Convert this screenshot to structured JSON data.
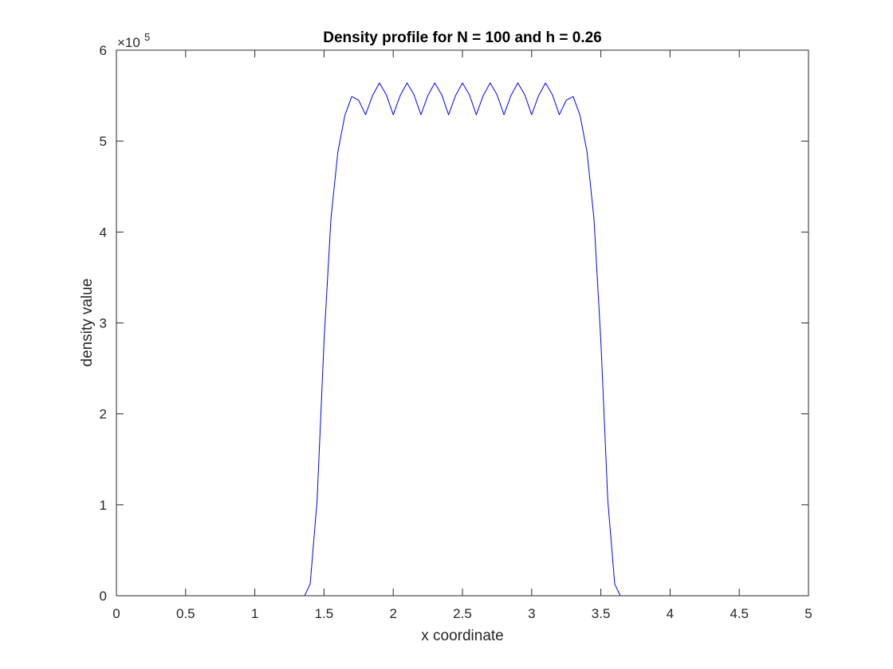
{
  "chart_data": {
    "type": "line",
    "title": "Density profile for N = 100 and h = 0.26",
    "xlabel": "x coordinate",
    "ylabel": "density value",
    "xlim": [
      0,
      5
    ],
    "ylim": [
      0,
      6
    ],
    "y_exponent_base": "×10",
    "y_exponent_power": "5",
    "x_ticks": [
      0,
      0.5,
      1,
      1.5,
      2,
      2.5,
      3,
      3.5,
      4,
      4.5,
      5
    ],
    "x_tick_labels": [
      "0",
      "0.5",
      "1",
      "1.5",
      "2",
      "2.5",
      "3",
      "3.5",
      "4",
      "4.5",
      "5"
    ],
    "y_ticks": [
      0,
      1,
      2,
      3,
      4,
      5,
      6
    ],
    "y_tick_labels": [
      "0",
      "1",
      "2",
      "3",
      "4",
      "5",
      "6"
    ],
    "grid": false,
    "line_color": "#0000ff",
    "series": [
      {
        "name": "density",
        "x": [
          0,
          1.36,
          1.4,
          1.45,
          1.5,
          1.55,
          1.6,
          1.65,
          1.7,
          1.75,
          1.8,
          1.85,
          1.9,
          1.95,
          2.0,
          2.05,
          2.1,
          2.15,
          2.2,
          2.25,
          2.3,
          2.35,
          2.4,
          2.45,
          2.5,
          2.55,
          2.6,
          2.65,
          2.7,
          2.75,
          2.8,
          2.85,
          2.9,
          2.95,
          3.0,
          3.05,
          3.1,
          3.15,
          3.2,
          3.25,
          3.3,
          3.35,
          3.4,
          3.45,
          3.5,
          3.55,
          3.6,
          3.64,
          5
        ],
        "y": [
          0,
          0,
          0.13,
          1.05,
          2.8,
          4.15,
          4.88,
          5.28,
          5.49,
          5.45,
          5.29,
          5.5,
          5.64,
          5.51,
          5.29,
          5.5,
          5.64,
          5.51,
          5.29,
          5.5,
          5.64,
          5.51,
          5.29,
          5.5,
          5.64,
          5.51,
          5.29,
          5.5,
          5.64,
          5.51,
          5.29,
          5.5,
          5.64,
          5.51,
          5.29,
          5.5,
          5.64,
          5.51,
          5.29,
          5.45,
          5.49,
          5.28,
          4.88,
          4.15,
          2.8,
          1.05,
          0.13,
          0,
          0
        ]
      }
    ]
  }
}
